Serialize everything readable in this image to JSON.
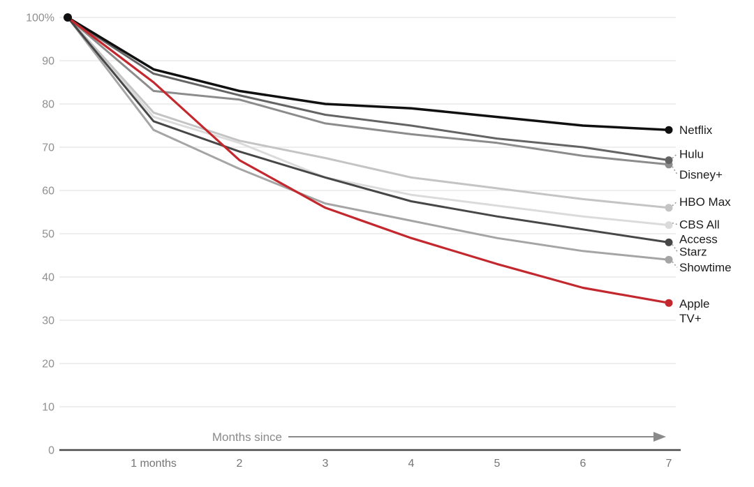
{
  "chart_data": {
    "type": "line",
    "title": "",
    "x": [
      0,
      1,
      2,
      3,
      4,
      5,
      6,
      7
    ],
    "xlabel": "",
    "ylabel": "",
    "ylim": [
      0,
      100
    ],
    "grid": true,
    "legend_position": "right-of-line-ends",
    "x_axis": {
      "annotation": "Months since",
      "annotation_arrow_icon": "right-arrow",
      "tick_labels": [
        {
          "month": 1,
          "label": "1 months"
        },
        {
          "month": 2,
          "label": "2"
        },
        {
          "month": 3,
          "label": "3"
        },
        {
          "month": 4,
          "label": "4"
        },
        {
          "month": 5,
          "label": "5"
        },
        {
          "month": 6,
          "label": "6"
        },
        {
          "month": 7,
          "label": "7"
        }
      ]
    },
    "y_axis": {
      "ticks": [
        {
          "value": 100,
          "label": "100%"
        },
        {
          "value": 90,
          "label": "90"
        },
        {
          "value": 80,
          "label": "80"
        },
        {
          "value": 70,
          "label": "70"
        },
        {
          "value": 60,
          "label": "60"
        },
        {
          "value": 50,
          "label": "50"
        },
        {
          "value": 40,
          "label": "40"
        },
        {
          "value": 30,
          "label": "30"
        },
        {
          "value": 20,
          "label": "20"
        },
        {
          "value": 10,
          "label": "10"
        },
        {
          "value": 0,
          "label": "0"
        }
      ]
    },
    "series": [
      {
        "name": "CBS All Access",
        "label_lines": [
          "CBS All",
          "Access"
        ],
        "color": "#dbdbdb",
        "line_width": 3,
        "values": [
          100,
          77,
          71,
          63,
          59,
          56.5,
          54,
          52
        ],
        "label_dy": -1,
        "leader": true
      },
      {
        "name": "HBO Max",
        "label_lines": [
          "HBO Max"
        ],
        "color": "#c4c4c4",
        "line_width": 3,
        "values": [
          100,
          78,
          71.5,
          67.5,
          63,
          60.5,
          58,
          56
        ],
        "label_dy": -9,
        "leader": true
      },
      {
        "name": "Showtime",
        "label_lines": [
          "Showtime"
        ],
        "color": "#a5a5a5",
        "line_width": 3,
        "values": [
          100,
          74,
          65,
          57,
          53,
          49,
          46,
          44
        ],
        "label_dy": 11,
        "leader": true
      },
      {
        "name": "Disney+",
        "label_lines": [
          "Disney+"
        ],
        "color": "#8c8c8c",
        "line_width": 3,
        "values": [
          100,
          83,
          81,
          75.5,
          73,
          71,
          68,
          66
        ],
        "label_dy": 14,
        "leader": true
      },
      {
        "name": "Hulu",
        "label_lines": [
          "Hulu"
        ],
        "color": "#646464",
        "line_width": 3,
        "values": [
          100,
          87,
          82,
          77.5,
          75,
          72,
          70,
          67
        ],
        "label_dy": -9,
        "leader": true
      },
      {
        "name": "Starz",
        "label_lines": [
          "Starz"
        ],
        "color": "#474747",
        "line_width": 3,
        "values": [
          100,
          76,
          69,
          63,
          57.5,
          54,
          51,
          48
        ],
        "label_dy": 13,
        "leader": true
      },
      {
        "name": "Netflix",
        "label_lines": [
          "Netflix"
        ],
        "color": "#101010",
        "line_width": 3.5,
        "values": [
          100,
          88,
          83,
          80,
          79,
          77,
          75,
          74
        ],
        "label_dy": 0,
        "leader": false
      },
      {
        "name": "Apple TV+",
        "label_lines": [
          "Apple",
          "TV+"
        ],
        "color": "#c2282e",
        "line_width": 3.2,
        "values": [
          100,
          85,
          67,
          56,
          49,
          43,
          37.5,
          34
        ],
        "label_dy": 1,
        "leader": false
      }
    ],
    "start_point": {
      "month": 0,
      "value": 100,
      "color": "#101010"
    }
  },
  "colors": {
    "background": "#ffffff",
    "gridline": "#e8e8e8",
    "axis_line": "#4a4a4a",
    "y_tick_text": "#8f8f8f",
    "x_tick_text": "#757575",
    "annotation_text": "#8a8a8a",
    "arrow": "#8a8a8a",
    "series_label_text": "#1c1c1c",
    "leader": "#9b9b9b"
  }
}
